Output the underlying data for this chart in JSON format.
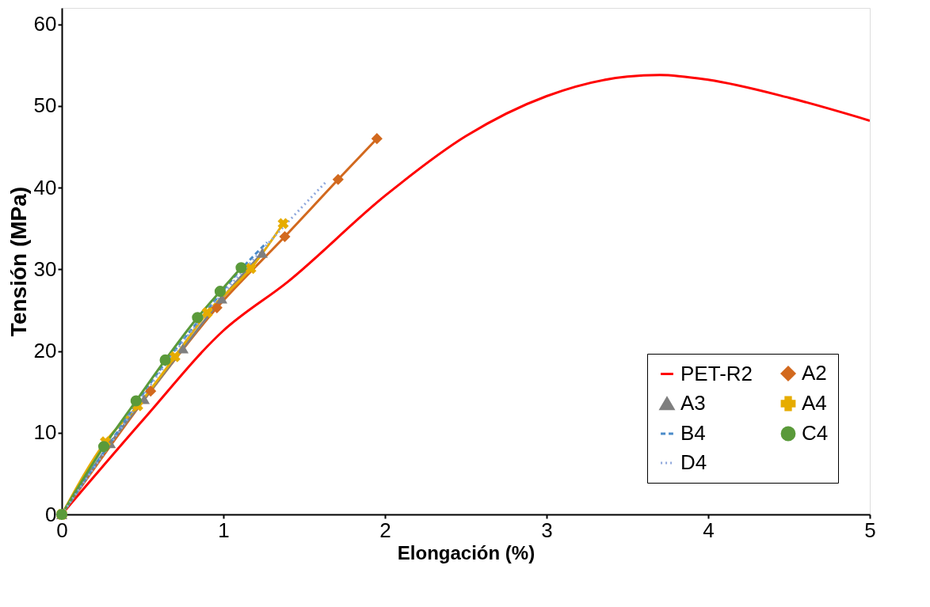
{
  "chart_data": {
    "type": "line",
    "xlabel": "Elongación (%)",
    "ylabel": "Tensión (MPa)",
    "xlim": [
      0,
      5
    ],
    "xticks": [
      0,
      1,
      2,
      3,
      4,
      5
    ],
    "ylim": [
      0,
      62
    ],
    "yticks": [
      0,
      10,
      20,
      30,
      40,
      50,
      60
    ],
    "grid": false,
    "legend": "bottom right",
    "series": [
      {
        "name": "PET-R2",
        "color": "#ff0000",
        "marker": "none",
        "line_style": "solid",
        "x": [
          0,
          0.5,
          1,
          1.4,
          2,
          2.5,
          3,
          3.5,
          3.7,
          4,
          4.5,
          5
        ],
        "values": [
          0,
          11.5,
          22.5,
          28.5,
          39,
          46.3,
          51.2,
          53.6,
          53.8,
          53.2,
          51,
          48.2
        ]
      },
      {
        "name": "A2",
        "color": "#d2691e",
        "marker": "diamond",
        "line_style": "solid",
        "x": [
          0,
          0.55,
          0.96,
          1.38,
          1.71,
          1.95
        ],
        "values": [
          0,
          15.1,
          25.3,
          34,
          41,
          46
        ]
      },
      {
        "name": "A3",
        "color": "#7f7f7f",
        "marker": "triangle",
        "line_style": "solid",
        "x": [
          0,
          0.3,
          0.51,
          0.75,
          0.99,
          1.24
        ],
        "values": [
          0,
          8.7,
          14.1,
          20.3,
          26.4,
          32
        ]
      },
      {
        "name": "A4",
        "color": "#e6ac00",
        "marker": "cross",
        "line_style": "solid",
        "x": [
          0,
          0.27,
          0.47,
          0.7,
          0.9,
          1.17,
          1.37
        ],
        "values": [
          0,
          8.9,
          13.3,
          19.3,
          24.7,
          30.1,
          35.6
        ]
      },
      {
        "name": "B4",
        "color": "#4a8bc9",
        "marker": "none",
        "line_style": "dashed",
        "x": [
          0,
          0.3,
          0.6,
          0.9,
          1.1,
          1.27
        ],
        "values": [
          0,
          8.8,
          17.5,
          25,
          29.8,
          33.3
        ]
      },
      {
        "name": "C4",
        "color": "#5a9a3a",
        "marker": "circle",
        "line_style": "solid",
        "x": [
          0,
          0.26,
          0.46,
          0.64,
          0.84,
          0.98,
          1.11
        ],
        "values": [
          0,
          8.3,
          13.9,
          18.9,
          24.1,
          27.3,
          30.2
        ]
      },
      {
        "name": "D4",
        "color": "#8fa8dc",
        "marker": "none",
        "line_style": "dotted",
        "x": [
          0,
          0.3,
          0.6,
          0.9,
          1.2,
          1.4,
          1.63
        ],
        "values": [
          0,
          8.6,
          17.2,
          24.8,
          31.5,
          35.8,
          40.6
        ]
      }
    ]
  }
}
